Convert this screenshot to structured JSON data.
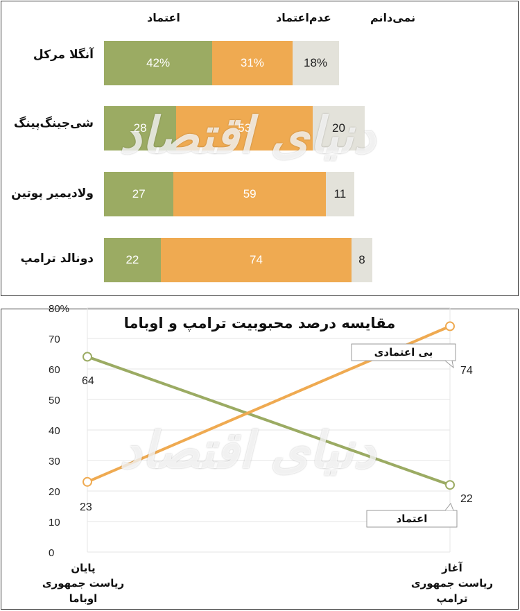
{
  "bars_panel": {
    "headers": {
      "trust": "اعتماد",
      "distrust": "عدم‌اعتماد",
      "dont_know": "نمی‌دانم"
    }
  },
  "line_panel": {
    "title": "مقایسه درصد محبوبیت ترامپ و اوباما"
  },
  "watermark": "دنیای اقتصاد",
  "colors": {
    "trust": "#9bab63",
    "distrust": "#efaa51",
    "dont_know": "#e3e2da"
  },
  "chart_data": [
    {
      "type": "bar",
      "stacked": true,
      "orientation": "horizontal",
      "categories": [
        "آنگلا مرکل",
        "شی‌جینگ‌پینگ",
        "ولادیمیر پوتین",
        "دونالد ترامپ"
      ],
      "series": [
        {
          "name": "اعتماد",
          "values": [
            42,
            28,
            27,
            22
          ],
          "labels": [
            "42%",
            "28",
            "27",
            "22"
          ]
        },
        {
          "name": "عدم‌اعتماد",
          "values": [
            31,
            53,
            59,
            74
          ],
          "labels": [
            "31%",
            "53",
            "59",
            "74"
          ]
        },
        {
          "name": "نمی‌دانم",
          "values": [
            18,
            20,
            11,
            8
          ],
          "labels": [
            "18%",
            "20",
            "11",
            "8"
          ]
        }
      ],
      "legend": "top"
    },
    {
      "type": "line",
      "categories": [
        "پایان\nریاست جمهوری\nاوباما",
        "آغاز\nریاست جمهوری\nترامپ"
      ],
      "series": [
        {
          "name": "اعتماد",
          "values": [
            64,
            22
          ],
          "labels": [
            "64",
            "22"
          ]
        },
        {
          "name": "بی اعتمادی",
          "values": [
            23,
            74
          ],
          "labels": [
            "23",
            "74"
          ]
        }
      ],
      "ylim": [
        0,
        80
      ],
      "yticks": [
        "0",
        "10",
        "20",
        "30",
        "40",
        "50",
        "60",
        "70",
        "80%"
      ],
      "grid": true
    }
  ]
}
